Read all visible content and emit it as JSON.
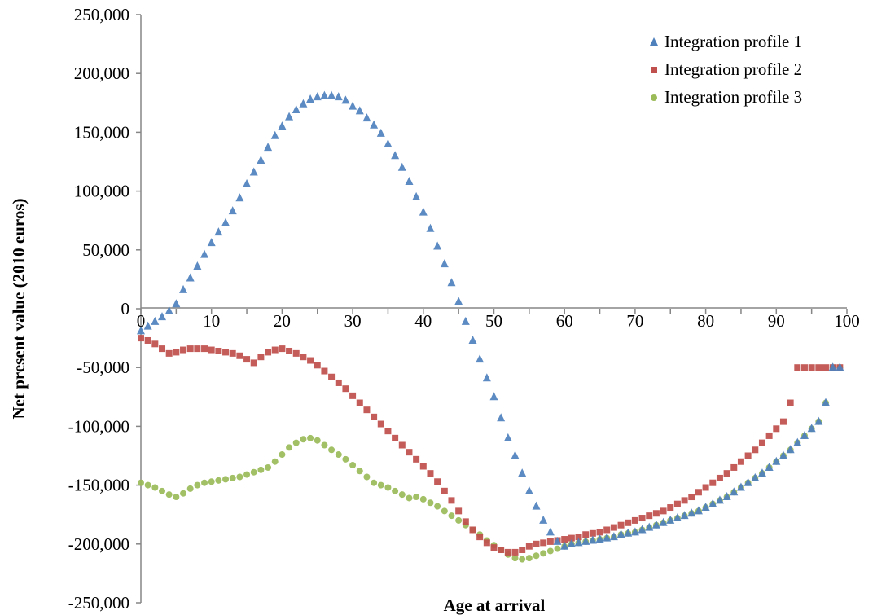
{
  "chart_data": {
    "type": "scatter",
    "title": "",
    "xlabel": "Age at arrival",
    "ylabel": "Net present value (2010 euros)",
    "xlim": [
      0,
      100
    ],
    "ylim": [
      -250000,
      250000
    ],
    "x_ticks": [
      "0",
      "10",
      "20",
      "30",
      "40",
      "50",
      "60",
      "70",
      "80",
      "90",
      "100"
    ],
    "y_ticks": [
      "250,000",
      "200,000",
      "150,000",
      "100,000",
      "50,000",
      "0",
      "-50,000",
      "-100,000",
      "-150,000",
      "-200,000",
      "-250,000"
    ],
    "legend_position": "top-right",
    "grid": false,
    "x": [
      0,
      1,
      2,
      3,
      4,
      5,
      6,
      7,
      8,
      9,
      10,
      11,
      12,
      13,
      14,
      15,
      16,
      17,
      18,
      19,
      20,
      21,
      22,
      23,
      24,
      25,
      26,
      27,
      28,
      29,
      30,
      31,
      32,
      33,
      34,
      35,
      36,
      37,
      38,
      39,
      40,
      41,
      42,
      43,
      44,
      45,
      46,
      47,
      48,
      49,
      50,
      51,
      52,
      53,
      54,
      55,
      56,
      57,
      58,
      59,
      60,
      61,
      62,
      63,
      64,
      65,
      66,
      67,
      68,
      69,
      70,
      71,
      72,
      73,
      74,
      75,
      76,
      77,
      78,
      79,
      80,
      81,
      82,
      83,
      84,
      85,
      86,
      87,
      88,
      89,
      90,
      91,
      92,
      93,
      94,
      95,
      96,
      97,
      98,
      99
    ],
    "series": [
      {
        "name": "Integration profile 1",
        "color": "#4f81bd",
        "marker": "triangle",
        "values": [
          -19000,
          -15000,
          -11000,
          -7000,
          -2000,
          4000,
          16000,
          26000,
          36000,
          46000,
          56000,
          65000,
          73000,
          83000,
          94000,
          106000,
          116000,
          126000,
          137000,
          147000,
          155000,
          163000,
          169000,
          174000,
          178000,
          180000,
          181000,
          181000,
          180000,
          177000,
          172000,
          168000,
          162000,
          156000,
          149000,
          140000,
          130000,
          120000,
          108000,
          95000,
          82000,
          68000,
          53000,
          38000,
          22000,
          6000,
          -11000,
          -27000,
          -43000,
          -59000,
          -75000,
          -93000,
          -110000,
          -125000,
          -140000,
          -155000,
          -168000,
          -180000,
          -190000,
          -198000,
          -202000,
          -200000,
          -199000,
          -198000,
          -197000,
          -196000,
          -195000,
          -194000,
          -192000,
          -191000,
          -190000,
          -188000,
          -186000,
          -184000,
          -182000,
          -180000,
          -178000,
          -176000,
          -174000,
          -172000,
          -169000,
          -166000,
          -163000,
          -160000,
          -156000,
          -152000,
          -148000,
          -144000,
          -140000,
          -135000,
          -130000,
          -125000,
          -120000,
          -114000,
          -108000,
          -102000,
          -96000,
          -80000,
          -50000,
          -50000
        ]
      },
      {
        "name": "Integration profile 2",
        "color": "#c0504d",
        "marker": "square",
        "values": [
          -25000,
          -27000,
          -30000,
          -34000,
          -38000,
          -37000,
          -35000,
          -34000,
          -34000,
          -34000,
          -35000,
          -36000,
          -37000,
          -38000,
          -40000,
          -43000,
          -46000,
          -41000,
          -37000,
          -35000,
          -34000,
          -36000,
          -38000,
          -41000,
          -44000,
          -48000,
          -53000,
          -58000,
          -63000,
          -68000,
          -74000,
          -80000,
          -86000,
          -92000,
          -98000,
          -104000,
          -110000,
          -116000,
          -122000,
          -128000,
          -134000,
          -140000,
          -147000,
          -155000,
          -163000,
          -172000,
          -181000,
          -188000,
          -194000,
          -199000,
          -203000,
          -205000,
          -207000,
          -207000,
          -205000,
          -202000,
          -200000,
          -199000,
          -198000,
          -197000,
          -196000,
          -195000,
          -194000,
          -192000,
          -191000,
          -190000,
          -188000,
          -186000,
          -184000,
          -182000,
          -180000,
          -178000,
          -176000,
          -174000,
          -172000,
          -169000,
          -166000,
          -163000,
          -160000,
          -156000,
          -152000,
          -148000,
          -144000,
          -140000,
          -135000,
          -130000,
          -125000,
          -120000,
          -114000,
          -108000,
          -102000,
          -96000,
          -80000,
          -50000,
          -50000,
          -50000,
          -50000,
          -50000,
          -50000,
          -50000
        ]
      },
      {
        "name": "Integration profile 3",
        "color": "#9bbb59",
        "marker": "circle",
        "values": [
          -148000,
          -150000,
          -152000,
          -155000,
          -158000,
          -160000,
          -157000,
          -153000,
          -150000,
          -148000,
          -147000,
          -146000,
          -145000,
          -144000,
          -143000,
          -141000,
          -139000,
          -137000,
          -135000,
          -130000,
          -124000,
          -118000,
          -114000,
          -111000,
          -110000,
          -112000,
          -116000,
          -120000,
          -124000,
          -128000,
          -133000,
          -138000,
          -143000,
          -148000,
          -150000,
          -152000,
          -155000,
          -158000,
          -161000,
          -160000,
          -162000,
          -165000,
          -168000,
          -172000,
          -176000,
          -180000,
          -184000,
          -188000,
          -192000,
          -197000,
          -201000,
          -205000,
          -209000,
          -212000,
          -213000,
          -212000,
          -210000,
          -208000,
          -206000,
          -204000,
          -202000,
          -200000,
          -199000,
          -198000,
          -197000,
          -196000,
          -195000,
          -194000,
          -192000,
          -191000,
          -190000,
          -188000,
          -186000,
          -184000,
          -182000,
          -180000,
          -178000,
          -176000,
          -174000,
          -172000,
          -169000,
          -166000,
          -163000,
          -160000,
          -156000,
          -152000,
          -148000,
          -144000,
          -140000,
          -135000,
          -130000,
          -125000,
          -120000,
          -114000,
          -108000,
          -102000,
          -96000,
          -80000,
          -50000,
          -50000
        ]
      }
    ]
  }
}
